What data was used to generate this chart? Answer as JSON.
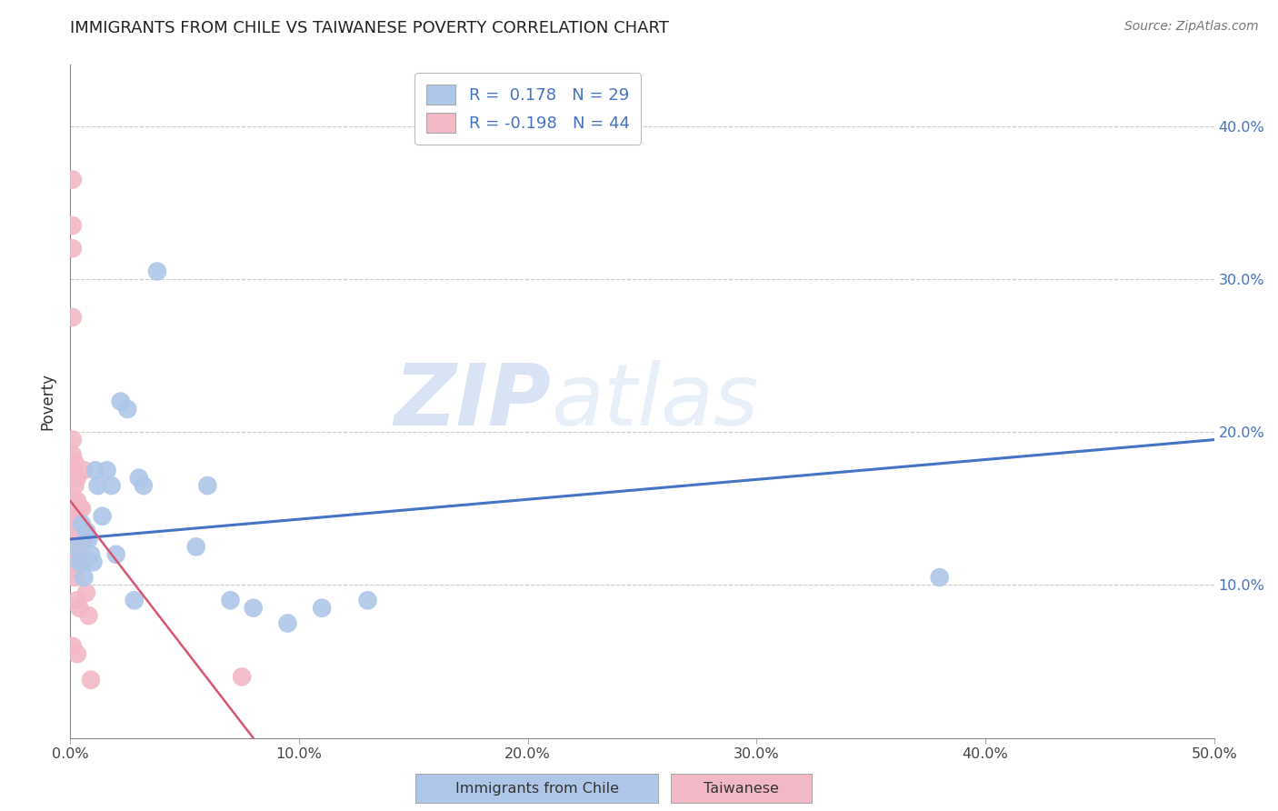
{
  "title": "IMMIGRANTS FROM CHILE VS TAIWANESE POVERTY CORRELATION CHART",
  "source": "Source: ZipAtlas.com",
  "ylabel": "Poverty",
  "xlim": [
    0,
    0.5
  ],
  "ylim": [
    0,
    0.44
  ],
  "xticks": [
    0.0,
    0.1,
    0.2,
    0.3,
    0.4,
    0.5
  ],
  "xticklabels": [
    "0.0%",
    "10.0%",
    "20.0%",
    "30.0%",
    "40.0%",
    "50.0%"
  ],
  "yticks": [
    0.0,
    0.1,
    0.2,
    0.3,
    0.4
  ],
  "right_yticklabels": [
    "",
    "10.0%",
    "20.0%",
    "30.0%",
    "40.0%"
  ],
  "watermark_zip": "ZIP",
  "watermark_atlas": "atlas",
  "legend_line1": "R =  0.178   N = 29",
  "legend_line2": "R = -0.198   N = 44",
  "chile_color": "#aec6e8",
  "taiwanese_color": "#f2b8c6",
  "chile_line_color": "#4472c4",
  "taiwanese_line_color": "#d9556e",
  "chile_scatter_x": [
    0.002,
    0.004,
    0.005,
    0.006,
    0.006,
    0.007,
    0.008,
    0.009,
    0.01,
    0.011,
    0.012,
    0.014,
    0.016,
    0.018,
    0.02,
    0.022,
    0.025,
    0.028,
    0.03,
    0.032,
    0.038,
    0.055,
    0.06,
    0.07,
    0.08,
    0.095,
    0.11,
    0.13,
    0.38
  ],
  "chile_scatter_y": [
    0.125,
    0.115,
    0.14,
    0.105,
    0.115,
    0.135,
    0.13,
    0.12,
    0.115,
    0.175,
    0.165,
    0.145,
    0.175,
    0.165,
    0.12,
    0.22,
    0.215,
    0.09,
    0.17,
    0.165,
    0.305,
    0.125,
    0.165,
    0.09,
    0.085,
    0.075,
    0.085,
    0.09,
    0.105
  ],
  "taiwanese_scatter_x": [
    0.001,
    0.001,
    0.001,
    0.001,
    0.001,
    0.001,
    0.001,
    0.001,
    0.001,
    0.001,
    0.001,
    0.001,
    0.001,
    0.001,
    0.001,
    0.001,
    0.002,
    0.002,
    0.002,
    0.002,
    0.002,
    0.002,
    0.002,
    0.003,
    0.003,
    0.003,
    0.003,
    0.003,
    0.003,
    0.003,
    0.004,
    0.004,
    0.004,
    0.004,
    0.005,
    0.005,
    0.005,
    0.006,
    0.006,
    0.007,
    0.007,
    0.008,
    0.009,
    0.075
  ],
  "taiwanese_scatter_y": [
    0.365,
    0.335,
    0.32,
    0.275,
    0.195,
    0.185,
    0.175,
    0.155,
    0.145,
    0.14,
    0.135,
    0.125,
    0.12,
    0.115,
    0.11,
    0.06,
    0.18,
    0.165,
    0.155,
    0.145,
    0.135,
    0.125,
    0.105,
    0.17,
    0.155,
    0.145,
    0.14,
    0.135,
    0.09,
    0.055,
    0.15,
    0.14,
    0.12,
    0.085,
    0.15,
    0.135,
    0.13,
    0.175,
    0.13,
    0.135,
    0.095,
    0.08,
    0.038,
    0.04
  ],
  "chile_trend_x": [
    0.0,
    0.5
  ],
  "chile_trend_y": [
    0.13,
    0.195
  ],
  "taiwanese_trend_x": [
    0.0,
    0.08
  ],
  "taiwanese_trend_y": [
    0.155,
    0.0
  ]
}
